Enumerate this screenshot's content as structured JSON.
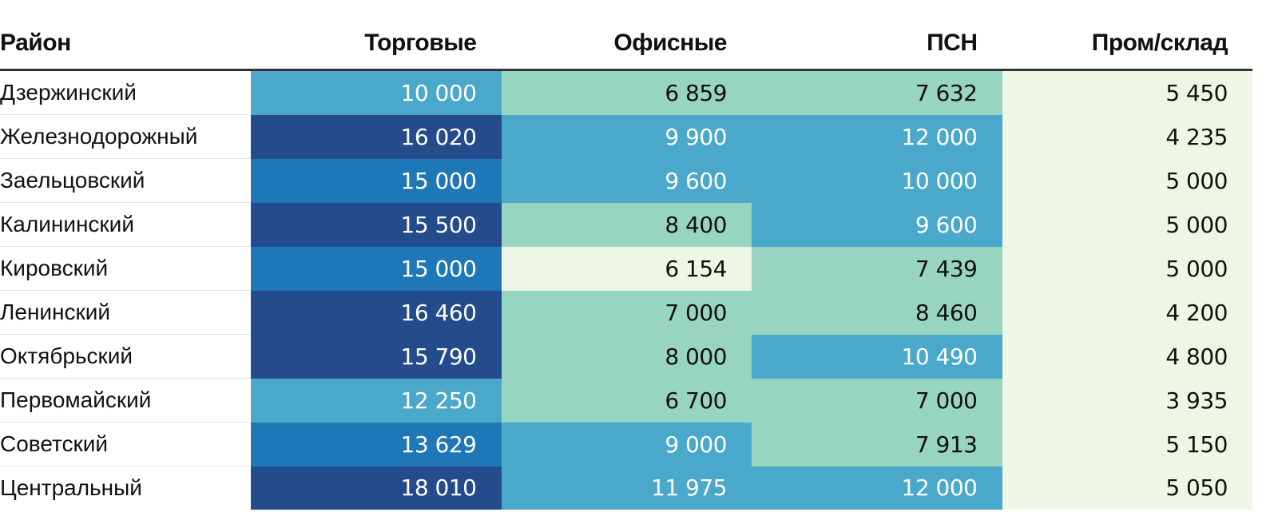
{
  "chart_data": {
    "type": "table",
    "columns": [
      "Район",
      "Торговые",
      "Офисные",
      "ПСН",
      "Пром/склад"
    ],
    "rows": [
      {
        "name": "Дзержинский",
        "values": [
          "10 000",
          "6 859",
          "7 632",
          "5 450"
        ],
        "numbers": [
          10000,
          6859,
          7632,
          5450
        ]
      },
      {
        "name": "Железнодорожный",
        "values": [
          "16 020",
          "9 900",
          "12 000",
          "4 235"
        ],
        "numbers": [
          16020,
          9900,
          12000,
          4235
        ]
      },
      {
        "name": "Заельцовский",
        "values": [
          "15 000",
          "9 600",
          "10 000",
          "5 000"
        ],
        "numbers": [
          15000,
          9600,
          10000,
          5000
        ]
      },
      {
        "name": "Калининский",
        "values": [
          "15 500",
          "8 400",
          "9 600",
          "5 000"
        ],
        "numbers": [
          15500,
          8400,
          9600,
          5000
        ]
      },
      {
        "name": "Кировский",
        "values": [
          "15 000",
          "6 154",
          "7 439",
          "5 000"
        ],
        "numbers": [
          15000,
          6154,
          7439,
          5000
        ]
      },
      {
        "name": "Ленинский",
        "values": [
          "16 460",
          "7 000",
          "8 460",
          "4 200"
        ],
        "numbers": [
          16460,
          7000,
          8460,
          4200
        ]
      },
      {
        "name": "Октябрьский",
        "values": [
          "15 790",
          "8 000",
          "10 490",
          "4 800"
        ],
        "numbers": [
          15790,
          8000,
          10490,
          4800
        ]
      },
      {
        "name": "Первомайский",
        "values": [
          "12 250",
          "6 700",
          "7 000",
          "3 935"
        ],
        "numbers": [
          12250,
          6700,
          7000,
          3935
        ]
      },
      {
        "name": "Советский",
        "values": [
          "13 629",
          "9 000",
          "7 913",
          "5 150"
        ],
        "numbers": [
          13629,
          9000,
          7913,
          5150
        ]
      },
      {
        "name": "Центральный",
        "values": [
          "18 010",
          "11 975",
          "12 000",
          "5 050"
        ],
        "numbers": [
          18010,
          11975,
          12000,
          5050
        ]
      }
    ],
    "color_scale": {
      "thresholds": [
        6500,
        9000,
        13000,
        15500
      ],
      "colors": [
        "#eef7e5",
        "#98d5c1",
        "#4aa8cb",
        "#1e78b8",
        "#244b8c"
      ],
      "text_colors": [
        "#111111",
        "#111111",
        "#ffffff",
        "#ffffff",
        "#ffffff"
      ]
    }
  }
}
